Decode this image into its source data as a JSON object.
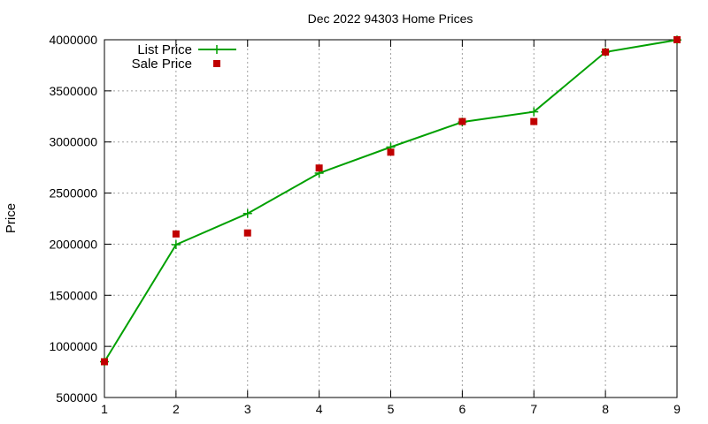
{
  "chart_data": {
    "type": "line",
    "title": "Dec 2022 94303 Home Prices",
    "xlabel": "",
    "ylabel": "Price",
    "x": [
      1,
      2,
      3,
      4,
      5,
      6,
      7,
      8,
      9
    ],
    "xlim": [
      1,
      9
    ],
    "ylim": [
      500000,
      4000000
    ],
    "xticks": [
      "1",
      "2",
      "3",
      "4",
      "5",
      "6",
      "7",
      "8",
      "9"
    ],
    "yticks": [
      "500000",
      "1000000",
      "1500000",
      "2000000",
      "2500000",
      "3000000",
      "3500000",
      "4000000"
    ],
    "grid": true,
    "legend_position": "top-left",
    "series": [
      {
        "name": "List Price",
        "style": "line-points",
        "marker": "plus",
        "color": "#00a000",
        "values": [
          850000,
          1995000,
          2300000,
          2695000,
          2950000,
          3195000,
          3295000,
          3880000,
          3998000
        ]
      },
      {
        "name": "Sale Price",
        "style": "points",
        "marker": "square",
        "color": "#c00000",
        "values": [
          850000,
          2100000,
          2110000,
          2745000,
          2900000,
          3200000,
          3200000,
          3880000,
          4000000
        ]
      }
    ]
  }
}
